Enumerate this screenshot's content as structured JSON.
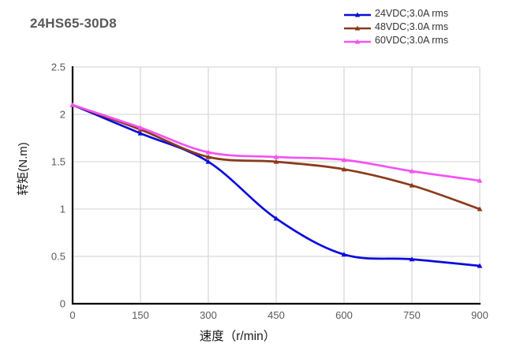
{
  "header": {
    "title": "24HS65-30D8"
  },
  "chart_data": {
    "type": "line",
    "title": "24HS65-30D8",
    "xlabel": "速度（r/min）",
    "ylabel": "转矩(N.m)",
    "x": [
      0,
      150,
      300,
      450,
      600,
      750,
      900
    ],
    "series": [
      {
        "key": "24vdc",
        "name": "24VDC;3.0A rms",
        "color": "#0b0bdb",
        "values": [
          2.1,
          1.8,
          1.5,
          0.9,
          0.52,
          0.47,
          0.4
        ]
      },
      {
        "key": "48vdc",
        "name": "48VDC;3.0A rms",
        "color": "#8b3a1b",
        "values": [
          2.1,
          1.84,
          1.55,
          1.5,
          1.42,
          1.25,
          1.0
        ]
      },
      {
        "key": "60vdc",
        "name": "60VDC;3.0A rms",
        "color": "#f353f3",
        "values": [
          2.1,
          1.86,
          1.6,
          1.55,
          1.52,
          1.4,
          1.3
        ]
      }
    ],
    "xlim": [
      0,
      900
    ],
    "ylim": [
      0,
      2.5
    ],
    "xticks": [
      0,
      150,
      300,
      450,
      600,
      750,
      900
    ],
    "yticks": [
      0,
      0.5,
      1,
      1.5,
      2,
      2.5
    ],
    "grid": true,
    "legend_position": "top-right",
    "marker": "triangle"
  },
  "style": {
    "grid_color": "#d9d9d9",
    "axis_color": "#000000",
    "tick_label_color": "#595959",
    "axis_label_color": "#1a1a1a",
    "title_color": "#595959",
    "legend_text_color": "#333333"
  }
}
